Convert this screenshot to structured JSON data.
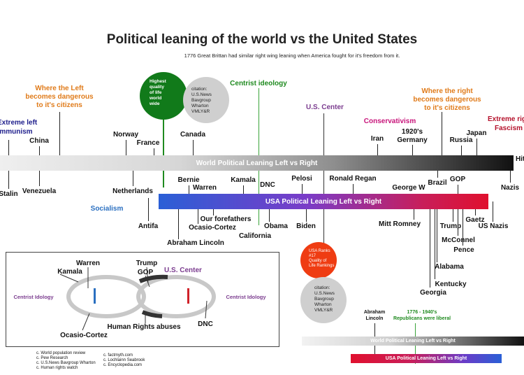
{
  "title": "Political leaning of the world vs the United States",
  "subtitle": "1776 Great Brittan had similar right wing leaning when America fought for it's freedom from it.",
  "colors": {
    "orange": "#e07b1a",
    "green": "#1f8a1f",
    "purple": "#7b3c8f",
    "navy": "#1e1e8c",
    "magenta": "#c8147a",
    "red_circle": "#ef3c12",
    "gray_circle": "#cfcfcf",
    "dark_green_circle": "#117a1a"
  },
  "annotations": {
    "extreme_left": "Extreme left",
    "communism": "Communism",
    "left_dangerous": "Where the Left\nbecomes dangerous\nto it's citizens",
    "right_dangerous": "Where the right\nbecomes dangerous\nto it's citizens",
    "extreme_right": "Extreme right",
    "fascism": "Fascism",
    "centrist": "Centrist ideology",
    "us_center": "U.S. Center",
    "conservativism": "Conservativism",
    "socialism": "Socialism"
  },
  "circles": {
    "quality": "Highest\nquality\nof life\nworld\nwide",
    "citation_top": "citation:\nU.S.News\nBavgroup\nWharton\nVMLY&R",
    "usa_ranks": "USA Ranks\n#17\nQuality of\nLife Rankings",
    "citation_bottom": "citation:\nU.S.News\nBavgroup\nWharton\nVMLY&R"
  },
  "world_bar": {
    "label": "World Political Leaning Left vs Right",
    "above": {
      "china": "China",
      "norway": "Norway",
      "france": "France",
      "canada": "Canada",
      "iran": "Iran",
      "germany_1920s": "1920's\nGermany",
      "russia": "Russia",
      "japan": "Japan"
    },
    "below": {
      "stalin": "Stalin",
      "venezuela": "Venezuela",
      "netherlands": "Netherlands",
      "nazis": "Nazis"
    },
    "edge_right": "Hit"
  },
  "usa_bar": {
    "label": "USA Political Leaning Left vs Right",
    "above": {
      "bernie": "Bernie",
      "warren": "Warren",
      "kamala": "Kamala",
      "dnc": "DNC",
      "pelosi": "Pelosi",
      "ronald_regan": "Ronald Regan",
      "george_w": "George W",
      "brazil": "Brazil",
      "gop": "GOP"
    },
    "below": {
      "antifa": "Antifa",
      "our_forefathers": "Our forefathers",
      "ocasio_cortez": "Ocasio-Cortez",
      "abraham_lincoln": "Abraham Lincoln",
      "obama": "Obama",
      "california": "California",
      "biden": "Biden",
      "mitt_romney": "Mitt Romney",
      "trump": "Trump",
      "gaetz": "Gaetz",
      "us_nazis": "US Nazis",
      "mcconnel": "McConnel",
      "pence": "Pence",
      "alabama": "Alabama",
      "kentucky": "Kentucky",
      "georgia": "Georgia"
    }
  },
  "inset": {
    "warren": "Warren",
    "kamala": "Kamala",
    "trump": "Trump",
    "gop": "GOP",
    "us_center": "U.S. Center",
    "centrist_left": "Centrist Idology",
    "centrist_right": "Centrist Idology",
    "ocasio_cortez": "Ocasio-Cortez",
    "human_rights": "Human Rights abuses",
    "dnc": "DNC"
  },
  "sources": {
    "col1": [
      "c. World population review",
      "c. Pew Research",
      "c. U.S.News Bavgroup Wharton",
      "c. Human rights watch"
    ],
    "col2": [
      "c. factmyth.com",
      "c. Lochlainn Seabrook",
      "c. Encyclopedia.com"
    ]
  },
  "mini": {
    "abraham_lincoln": "Abraham\nLincoln",
    "republicans_liberal": "1776 - 1940's\nRepublicans were liberal",
    "world_bar_label": "World Political Leaning Left vs Right",
    "usa_bar_label": "USA Political Leaning Left vs Right"
  }
}
